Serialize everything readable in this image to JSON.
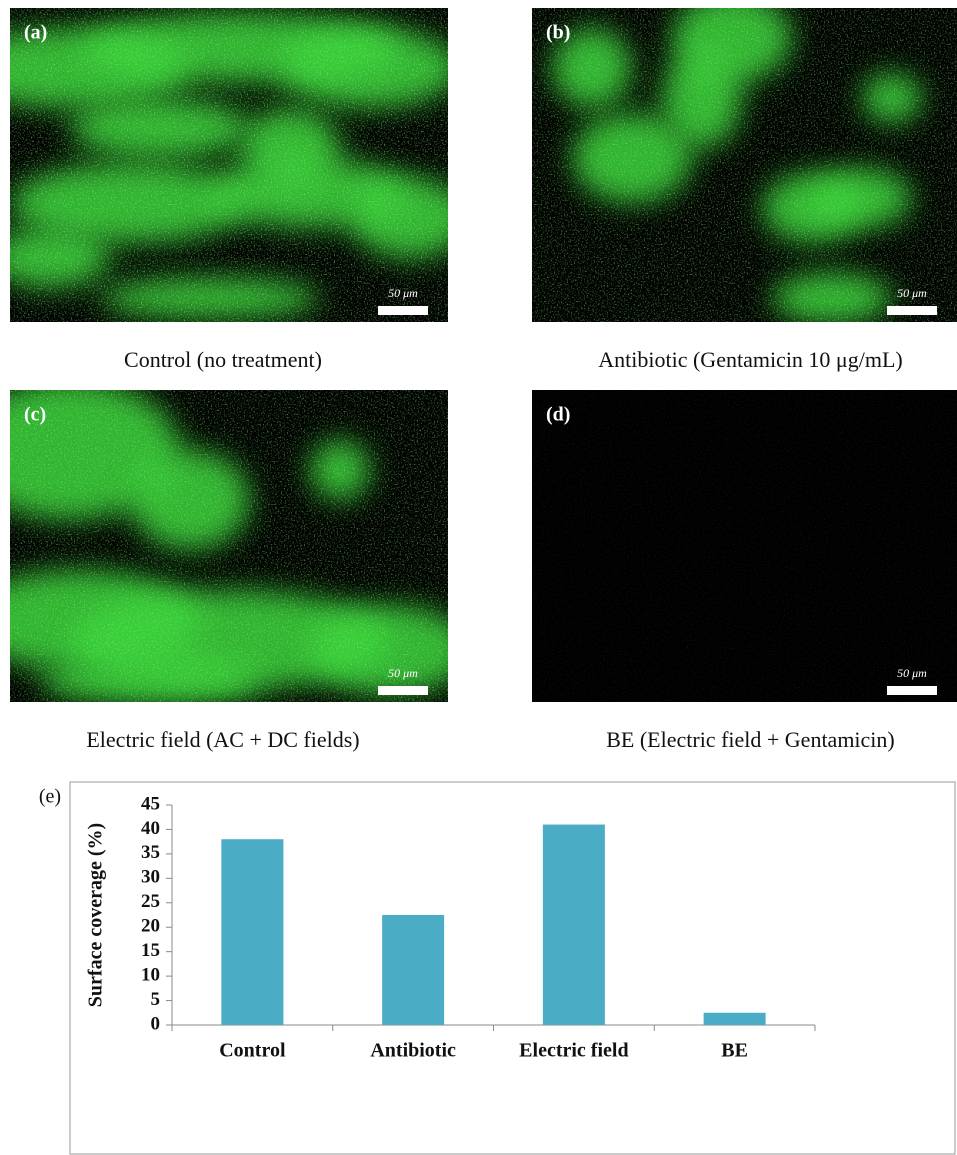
{
  "panels": [
    {
      "label": "(a)",
      "caption": "Control (no treatment)",
      "scale_bar": "50 μm"
    },
    {
      "label": "(b)",
      "caption": "Antibiotic (Gentamicin 10 μg/mL)",
      "scale_bar": "50 μm"
    },
    {
      "label": "(c)",
      "caption": "Electric field (AC + DC fields)",
      "scale_bar": "50 μm"
    },
    {
      "label": "(d)",
      "caption": "BE (Electric field + Gentamicin)",
      "scale_bar": "50 μm"
    }
  ],
  "chart_data": {
    "type": "bar",
    "label": "(e)",
    "y_label": "Surface coverage (%)",
    "categories": [
      "Control",
      "Antibiotic",
      "Electric field",
      "BE"
    ],
    "values": [
      38,
      22.5,
      41,
      2.5
    ],
    "color": "#4bacc6",
    "ylim": [
      0,
      45
    ],
    "yticks": [
      0,
      5,
      10,
      15,
      20,
      25,
      30,
      35,
      40,
      45
    ]
  }
}
